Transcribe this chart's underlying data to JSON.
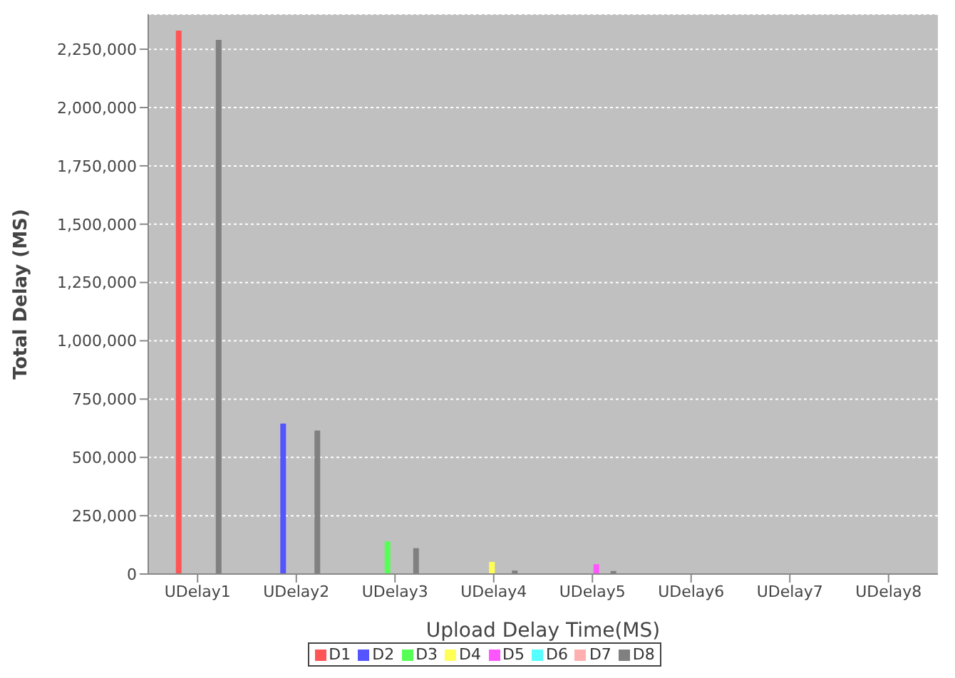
{
  "chart_data": {
    "type": "bar",
    "xlabel": "Upload Delay Time(MS)",
    "ylabel": "Total Delay (MS)",
    "categories": [
      "UDelay1",
      "UDelay2",
      "UDelay3",
      "UDelay4",
      "UDelay5",
      "UDelay6",
      "UDelay7",
      "UDelay8"
    ],
    "series": [
      {
        "name": "D1",
        "color": "#ff5555",
        "values": [
          2330000,
          null,
          null,
          null,
          null,
          null,
          null,
          null
        ]
      },
      {
        "name": "D2",
        "color": "#5555ff",
        "values": [
          null,
          645000,
          null,
          null,
          null,
          null,
          null,
          null
        ]
      },
      {
        "name": "D3",
        "color": "#55ff55",
        "values": [
          null,
          null,
          140000,
          null,
          null,
          null,
          null,
          null
        ]
      },
      {
        "name": "D4",
        "color": "#ffff55",
        "values": [
          null,
          null,
          null,
          52000,
          null,
          null,
          null,
          null
        ]
      },
      {
        "name": "D5",
        "color": "#ff55ff",
        "values": [
          null,
          null,
          null,
          null,
          42000,
          null,
          null,
          null
        ]
      },
      {
        "name": "D6",
        "color": "#55ffff",
        "values": [
          null,
          null,
          null,
          null,
          null,
          null,
          null,
          null
        ]
      },
      {
        "name": "D7",
        "color": "#ffafaf",
        "values": [
          null,
          null,
          null,
          null,
          null,
          null,
          null,
          null
        ]
      },
      {
        "name": "D8",
        "color": "#808080",
        "values": [
          2290000,
          615000,
          111000,
          15000,
          13000,
          null,
          null,
          null
        ]
      }
    ],
    "ylim": [
      0,
      2400000
    ],
    "yticks": [
      0,
      {
        "value": 250000,
        "label": "250,000"
      },
      {
        "value": 500000,
        "label": "500,000"
      },
      {
        "value": 750000,
        "label": "750,000"
      },
      {
        "value": 1000000,
        "label": "1,000,000"
      },
      {
        "value": 1250000,
        "label": "1,250,000"
      },
      {
        "value": 1500000,
        "label": "1,500,000"
      },
      {
        "value": 1750000,
        "label": "1,750,000"
      },
      {
        "value": 2000000,
        "label": "2,000,000"
      },
      {
        "value": 2250000,
        "label": "2,250,000"
      }
    ],
    "grid": "y",
    "legend": "bottom"
  }
}
